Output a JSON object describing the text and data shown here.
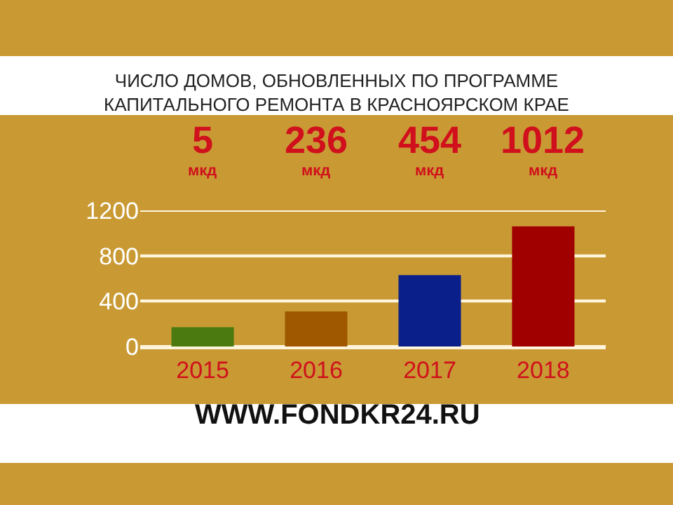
{
  "chart_data": {
    "type": "bar",
    "title": "ЧИСЛО ДОМОВ, ОБНОВЛЕННЫХ ПО ПРОГРАММЕ\nКАПИТАЛЬНОГО РЕМОНТА В КРАСНОЯРСКОМ КРАЕ",
    "categories": [
      "2015",
      "2016",
      "2017",
      "2018"
    ],
    "values": [
      170,
      310,
      630,
      1060
    ],
    "colors": [
      "#4a7a10",
      "#a05800",
      "#0a1f8a",
      "#a00000"
    ],
    "ylim": [
      0,
      1200
    ],
    "yticks": [
      0,
      400,
      800,
      1200
    ],
    "grid": "y",
    "annotations": [
      "5\nмкд",
      "236\nмкд",
      "454\nмкд",
      "1012\nмкд",
      "WWW.FONDKR24.RU"
    ]
  }
}
